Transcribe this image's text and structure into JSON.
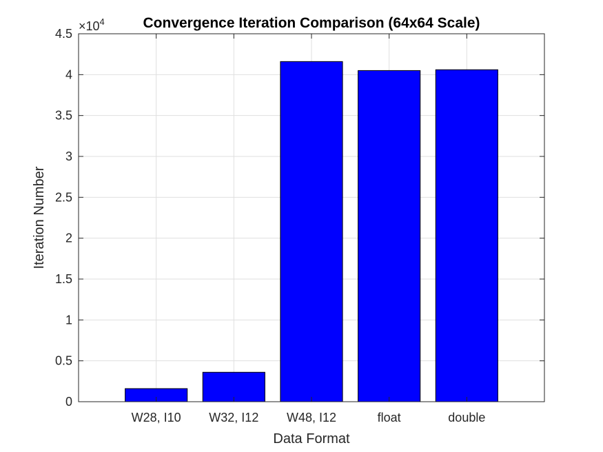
{
  "chart_data": {
    "type": "bar",
    "title": "Convergence Iteration Comparison (64x64 Scale)",
    "xlabel": "Data Format",
    "ylabel": "Iteration Number",
    "categories": [
      "W28, I10",
      "W32, I12",
      "W48, I12",
      "float",
      "double"
    ],
    "values": [
      1600,
      3600,
      41600,
      40500,
      40600
    ],
    "ylim": [
      0,
      45000
    ],
    "yticks": [
      0,
      5000,
      10000,
      15000,
      20000,
      25000,
      30000,
      35000,
      40000,
      45000
    ],
    "ytick_labels": [
      "0",
      "0.5",
      "1",
      "1.5",
      "2",
      "2.5",
      "3",
      "3.5",
      "4",
      "4.5"
    ],
    "y_exponent_base": "×10",
    "y_exponent_power": "4",
    "grid": true,
    "bar_color": "#0000FF",
    "bar_edge_color": "#000000"
  }
}
